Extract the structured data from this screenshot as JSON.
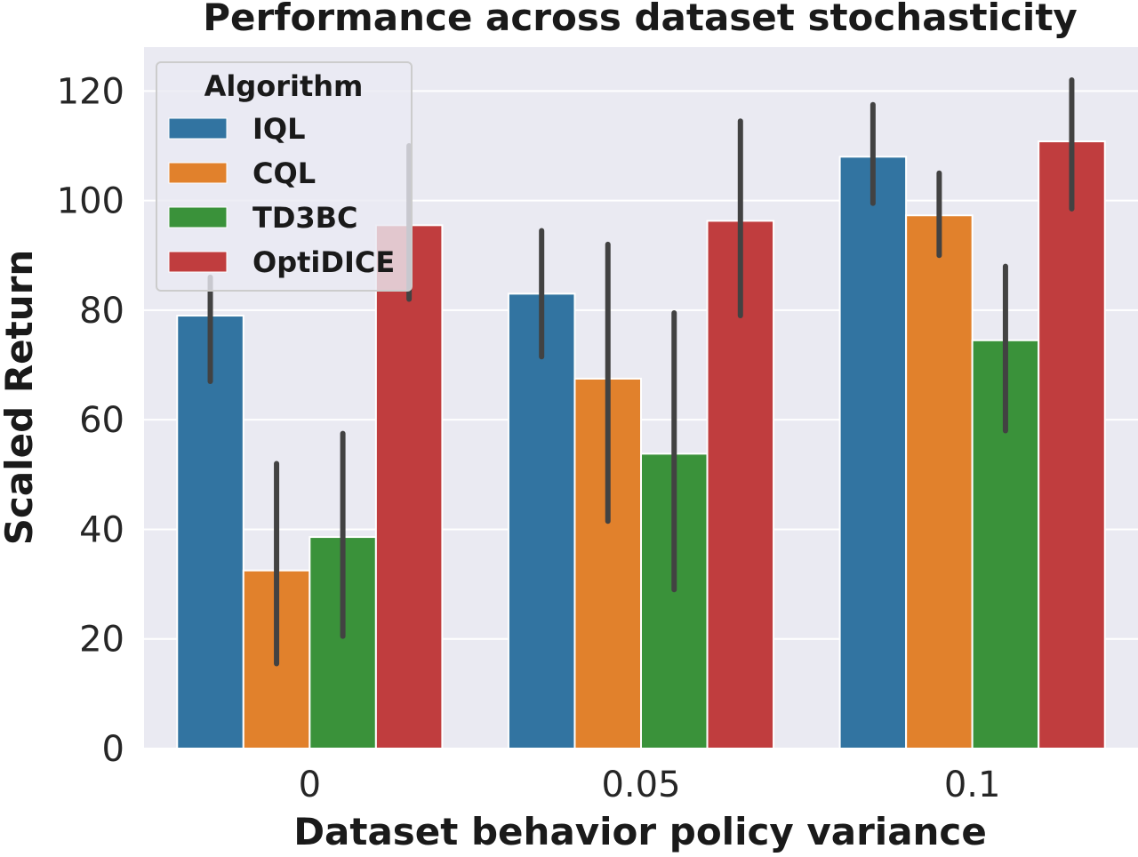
{
  "chart_data": {
    "type": "bar",
    "title": "Performance across dataset stochasticity",
    "xlabel": "Dataset behavior policy variance",
    "ylabel": "Scaled Return",
    "categories": [
      "0",
      "0.05",
      "0.1"
    ],
    "ylim": [
      0,
      128
    ],
    "yticks": [
      0,
      20,
      40,
      60,
      80,
      100,
      120
    ],
    "grid": true,
    "legend": {
      "title": "Algorithm",
      "placement": "top-left"
    },
    "series": [
      {
        "name": "IQL",
        "color": "#3274a1",
        "values": [
          79,
          83,
          108
        ],
        "ci_low": [
          67,
          71.5,
          99.5
        ],
        "ci_high": [
          86,
          94.5,
          117.5
        ]
      },
      {
        "name": "CQL",
        "color": "#e1812c",
        "values": [
          32.5,
          67.5,
          97.3
        ],
        "ci_low": [
          15.5,
          41.5,
          90
        ],
        "ci_high": [
          52,
          92,
          105
        ]
      },
      {
        "name": "TD3BC",
        "color": "#3a923a",
        "values": [
          38.6,
          53.8,
          74.5
        ],
        "ci_low": [
          20.5,
          29,
          58
        ],
        "ci_high": [
          57.5,
          79.5,
          88
        ]
      },
      {
        "name": "OptiDICE",
        "color": "#c03d3e",
        "values": [
          95.5,
          96.3,
          110.8
        ],
        "ci_low": [
          82,
          79,
          98.5
        ],
        "ci_high": [
          110,
          114.5,
          122
        ]
      }
    ]
  }
}
